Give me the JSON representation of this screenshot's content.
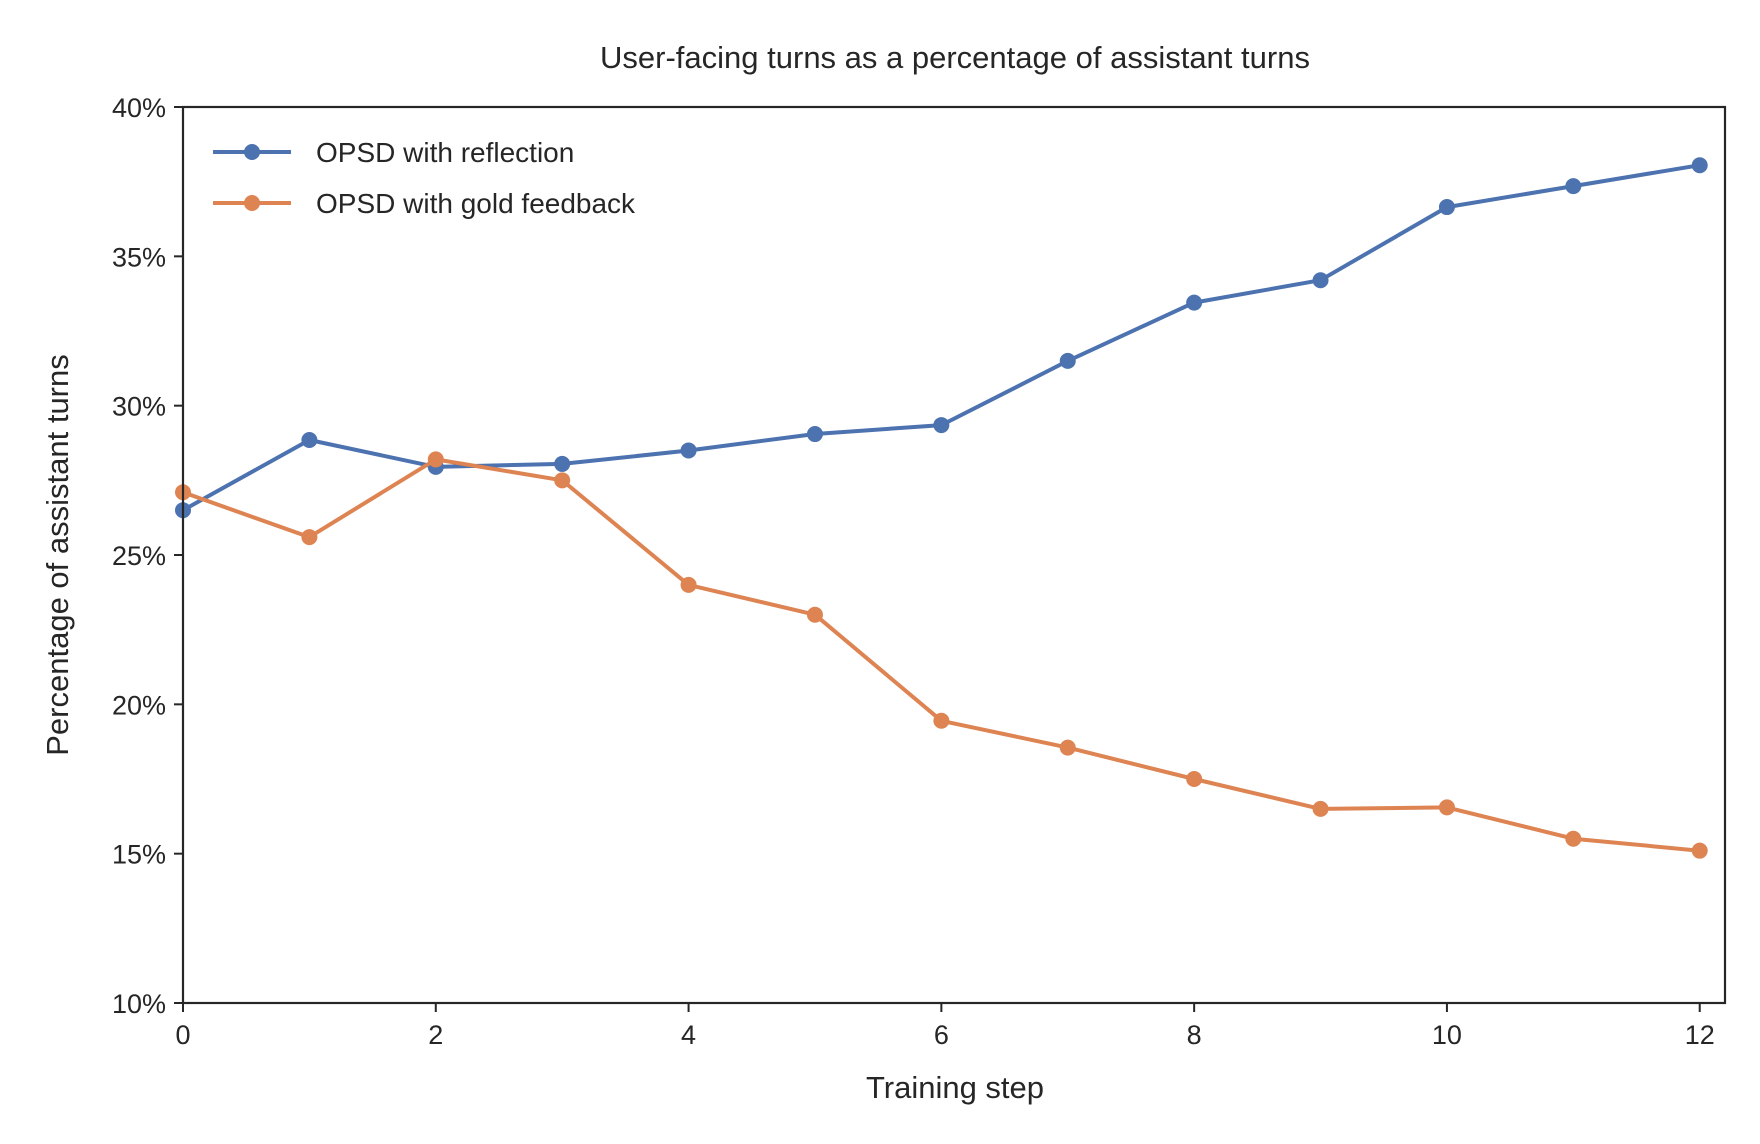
{
  "chart_data": {
    "type": "line",
    "title": "User-facing turns as a percentage of assistant turns",
    "xlabel": "Training step",
    "ylabel": "Percentage of assistant turns",
    "xlim": [
      0,
      12.2
    ],
    "ylim": [
      10,
      40
    ],
    "x_ticks": [
      0,
      2,
      4,
      6,
      8,
      10,
      12
    ],
    "x_tick_labels": [
      "0",
      "2",
      "4",
      "6",
      "8",
      "10",
      "12"
    ],
    "y_ticks": [
      10,
      15,
      20,
      25,
      30,
      35,
      40
    ],
    "y_tick_labels": [
      "10%",
      "15%",
      "20%",
      "25%",
      "30%",
      "35%",
      "40%"
    ],
    "grid": false,
    "legend_position": "top-left",
    "x": [
      0,
      1,
      2,
      3,
      4,
      5,
      6,
      7,
      8,
      9,
      10,
      11,
      12
    ],
    "series": [
      {
        "name": "OPSD with reflection",
        "color": "#4c72b0",
        "values": [
          26.5,
          28.85,
          27.95,
          28.05,
          28.5,
          29.05,
          29.35,
          31.5,
          33.45,
          34.2,
          36.65,
          37.35,
          38.05
        ]
      },
      {
        "name": "OPSD with gold feedback",
        "color": "#dd8452",
        "values": [
          27.1,
          25.6,
          28.2,
          27.5,
          24.0,
          23.0,
          19.45,
          18.55,
          17.5,
          16.5,
          16.55,
          15.5,
          15.1
        ]
      }
    ]
  }
}
